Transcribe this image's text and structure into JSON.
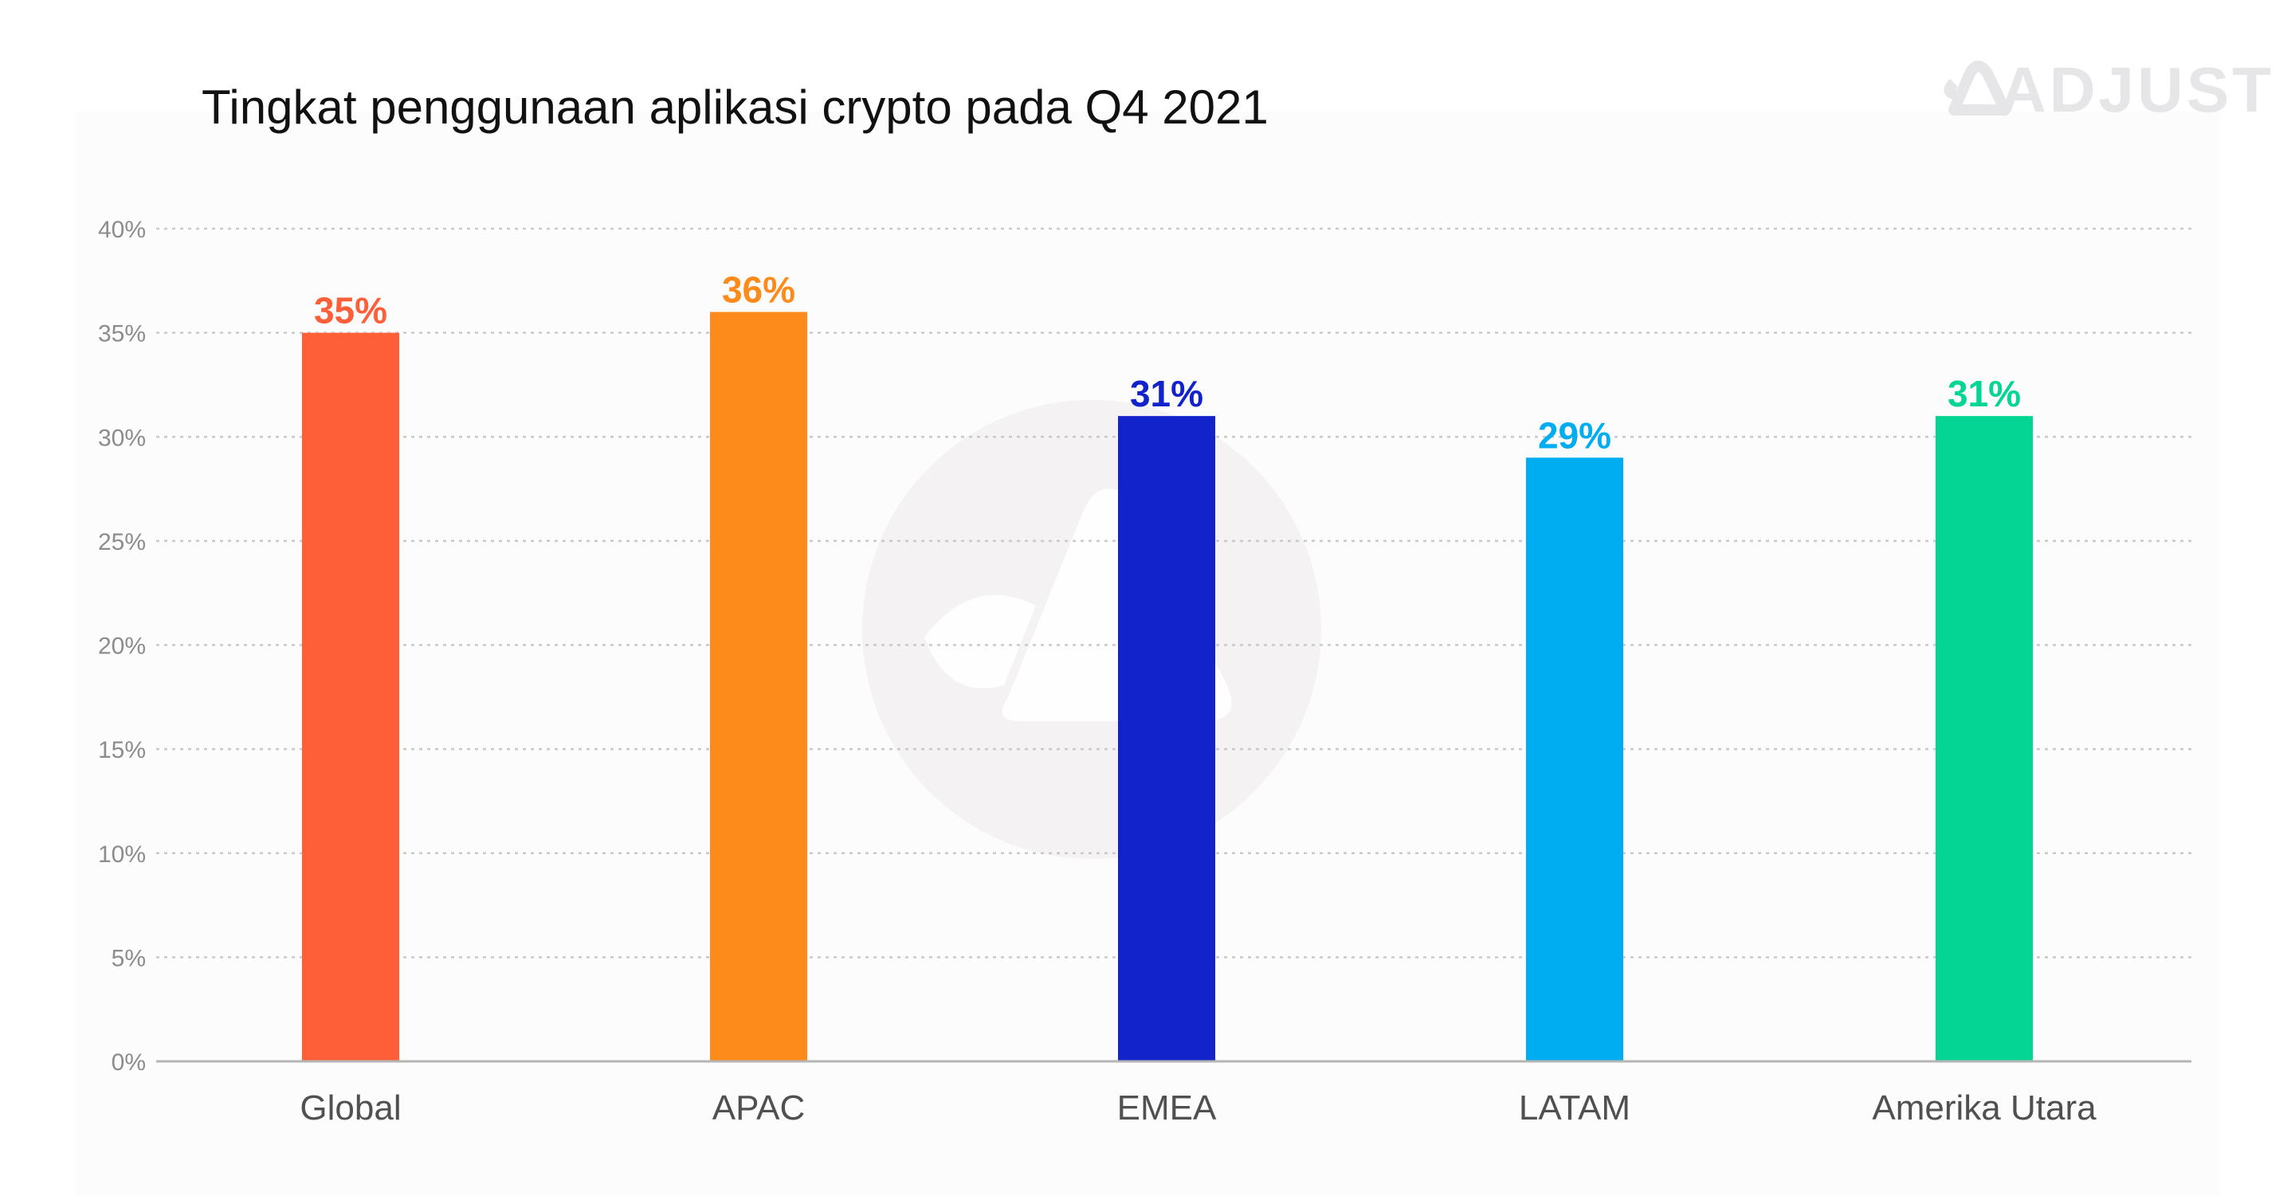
{
  "brand": {
    "logo_text": "ADJUST",
    "logo_color": "#e6e6e8",
    "watermark_color": "#f4f2f3"
  },
  "chart_data": {
    "type": "bar",
    "title": "Tingkat penggunaan aplikasi crypto pada Q4 2021",
    "xlabel": "",
    "ylabel": "",
    "categories": [
      "Global",
      "APAC",
      "EMEA",
      "LATAM",
      "Amerika Utara"
    ],
    "values": [
      35,
      36,
      31,
      29,
      31
    ],
    "value_labels": [
      "35%",
      "36%",
      "31%",
      "29%",
      "31%"
    ],
    "colors": [
      "#ff5f38",
      "#fd8b1b",
      "#1223cb",
      "#00adf0",
      "#04d594"
    ],
    "ylim": [
      0,
      40
    ],
    "yticks": [
      0,
      5,
      10,
      15,
      20,
      25,
      30,
      35,
      40
    ],
    "ytick_labels": [
      "0%",
      "5%",
      "10%",
      "15%",
      "20%",
      "25%",
      "30%",
      "35%",
      "40%"
    ],
    "grid": true,
    "legend": "none"
  },
  "colors": {
    "panel_bg": "#fdfcfd",
    "grid": "#c9c9c9",
    "axis": "#b5b5b5",
    "tick_text": "#8c8c8c",
    "category_text": "#505050",
    "title_text": "#111111"
  }
}
